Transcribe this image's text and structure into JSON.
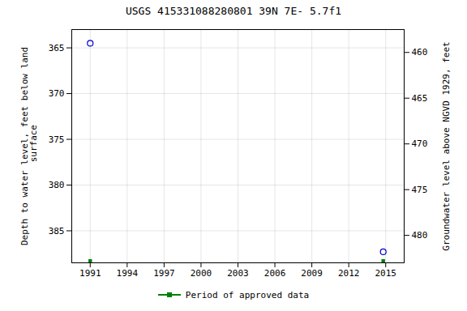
{
  "chart_data": {
    "type": "scatter",
    "title": "USGS 415331088280801 39N 7E- 5.7f1",
    "ylabel": "Depth to water level, feet below land\n surface",
    "y2label": "Groundwater level above NGVD 1929, feet",
    "xlim": [
      1989.5,
      2016.5
    ],
    "xticks": [
      1991,
      1994,
      1997,
      2000,
      2003,
      2006,
      2009,
      2012,
      2015
    ],
    "ylim": [
      388.5,
      363.0
    ],
    "yticks": [
      365,
      370,
      375,
      380,
      385
    ],
    "y2lim": [
      483.0,
      457.5
    ],
    "y2ticks": [
      480,
      475,
      470,
      465,
      460
    ],
    "grid": true,
    "legend": "bottom",
    "series": [
      {
        "color": "#0000cc",
        "marker": "open_circle",
        "x": [
          1991.0,
          2014.8
        ],
        "values": [
          364.5,
          387.3
        ]
      },
      {
        "name": "Period of approved data",
        "color": "#008000",
        "marker": "square",
        "x": [
          1991.0,
          2014.8
        ],
        "values": [
          388.3,
          388.3
        ]
      }
    ]
  }
}
